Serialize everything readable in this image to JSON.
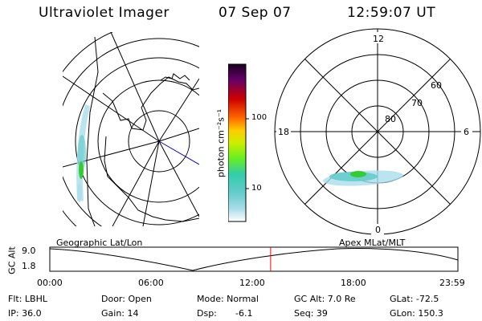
{
  "header": {
    "title": "Ultraviolet Imager",
    "date": "07 Sep 07",
    "time": "12:59:07 UT"
  },
  "colorbar": {
    "unit_label": "photon cm⁻²s⁻¹",
    "ticks": [
      "100",
      "10"
    ]
  },
  "left_map": {
    "label": "Geographic Lat/Lon"
  },
  "right_map": {
    "label": "Apex MLat/MLT",
    "mlt_labels": [
      "12",
      "18",
      "6",
      "0"
    ],
    "lat_labels": [
      "60",
      "70",
      "80"
    ]
  },
  "timeline": {
    "y_axis_label": "GC Alt",
    "y_ticks": [
      "9.0",
      "1.8"
    ],
    "x_ticks": [
      "00:00",
      "06:00",
      "12:00",
      "18:00",
      "23:59"
    ],
    "current_time_fraction": 0.5411
  },
  "footer": {
    "row1": {
      "flt": "Flt: LBHL",
      "door": "Door: Open",
      "mode": "Mode: Normal",
      "gc_alt": "GC Alt: 7.0 Re",
      "glat": "GLat: -72.5"
    },
    "row2": {
      "ip": "IP: 36.0",
      "gain": "Gain: 14",
      "dsp_label": "Dsp:",
      "dsp_value": "-6.1",
      "seq": "Seq: 39",
      "glon": "GLon: 150.3"
    }
  },
  "colors": {
    "aurora_core": "#33cc33",
    "aurora_mid": "#66cccc",
    "aurora_faint": "#aaddee",
    "time_marker": "#ff0000",
    "blue_line": "#0000cc"
  }
}
